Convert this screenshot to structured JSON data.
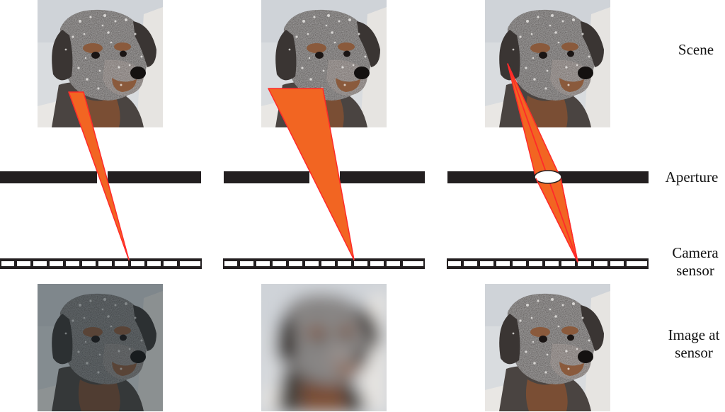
{
  "labels": {
    "scene": "Scene",
    "aperture": "Aperture",
    "camera_sensor": "Camera\nsensor",
    "image_at_sensor": "Image at\nsensor"
  },
  "colors": {
    "ray_fill": "#f26522",
    "ray_stroke": "#ff2a2a",
    "aperture_bar": "#231f20",
    "sensor_border": "#231f20",
    "fur_dark": "#3f3b3a",
    "fur_mid": "#5e5855",
    "snow": "#e8e6e3",
    "tan": "#8a5a3c",
    "sky": "#cfd3d8"
  },
  "columns": [
    {
      "id": "opening",
      "aperture_type": "wide-gap",
      "bottom_image": "dim-sharp-dog"
    },
    {
      "id": "wide-opening",
      "aperture_type": "wider-gap",
      "bottom_image": "blurred-dog"
    },
    {
      "id": "lens",
      "aperture_type": "lens",
      "bottom_image": "sharp-dog"
    }
  ]
}
